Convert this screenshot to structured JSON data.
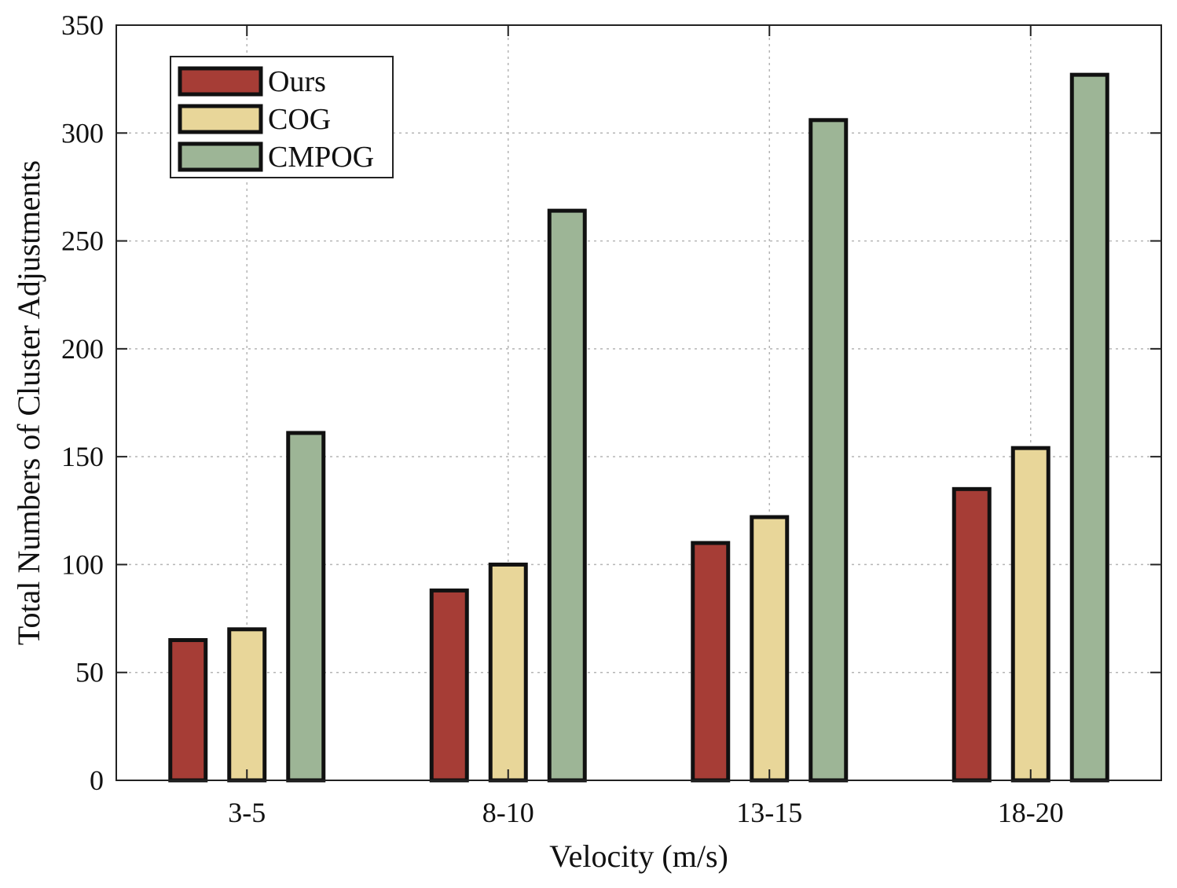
{
  "chart_data": {
    "type": "bar",
    "title": "",
    "xlabel": "Velocity (m/s)",
    "ylabel": "Total Numbers of Cluster Adjustments",
    "categories": [
      "3-5",
      "8-10",
      "13-15",
      "18-20"
    ],
    "series": [
      {
        "name": "Ours",
        "color": "#a63d36",
        "values": [
          65,
          88,
          110,
          135
        ]
      },
      {
        "name": "COG",
        "color": "#e8d699",
        "values": [
          70,
          100,
          122,
          154
        ]
      },
      {
        "name": "CMPOG",
        "color": "#9db596",
        "values": [
          161,
          264,
          306,
          327
        ]
      }
    ],
    "ylim": [
      0,
      350
    ],
    "yticks": [
      "0",
      "50",
      "100",
      "150",
      "200",
      "250",
      "300",
      "350"
    ],
    "grid": true,
    "legend_position": "top-left"
  }
}
